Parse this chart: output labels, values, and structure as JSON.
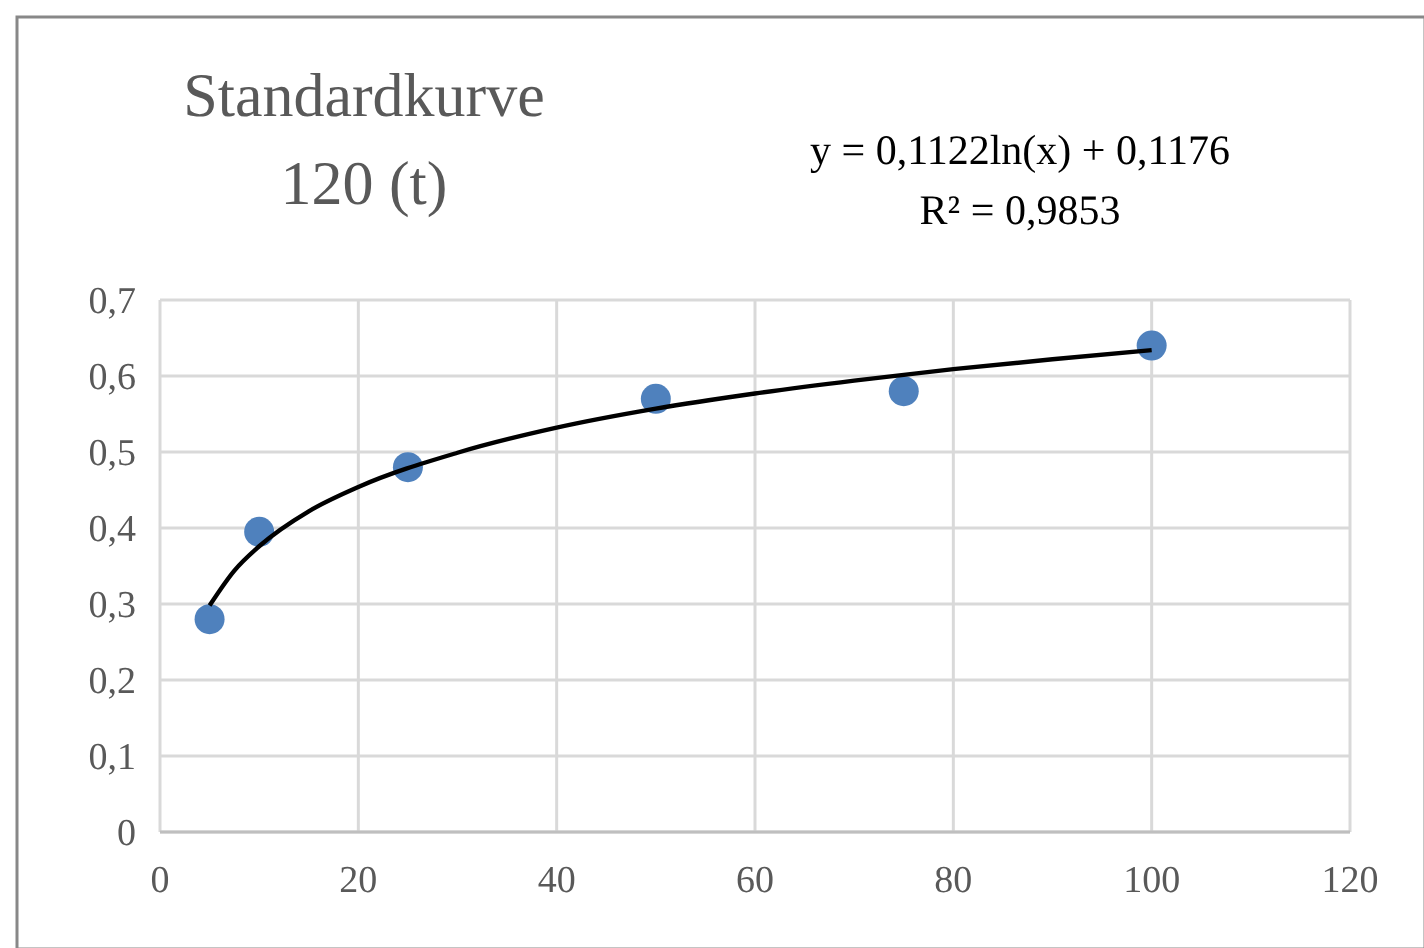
{
  "chart_data": {
    "type": "scatter",
    "title": "Standardkurve 120 (t)",
    "annotations": [
      "y = 0,1122ln(x) + 0,1176",
      "R² = 0,9853"
    ],
    "xlim": [
      0,
      120
    ],
    "xticks": [
      0,
      20,
      40,
      60,
      80,
      100,
      120
    ],
    "ylim": [
      0,
      0.7
    ],
    "yticks": [
      {
        "value": 0,
        "label": "0"
      },
      {
        "value": 0.1,
        "label": "0,1"
      },
      {
        "value": 0.2,
        "label": "0,2"
      },
      {
        "value": 0.3,
        "label": "0,3"
      },
      {
        "value": 0.4,
        "label": "0,4"
      },
      {
        "value": 0.5,
        "label": "0,5"
      },
      {
        "value": 0.6,
        "label": "0,6"
      },
      {
        "value": 0.7,
        "label": "0,7"
      }
    ],
    "grid": true,
    "marker": "circle",
    "series": [
      {
        "color": "#4f81bd",
        "x": [
          5,
          10,
          25,
          50,
          75,
          100
        ],
        "values": [
          0.28,
          0.395,
          0.48,
          0.57,
          0.58,
          0.64
        ]
      },
      {
        "type": "line",
        "color": "#000000",
        "marker": "none",
        "line_style": "solid",
        "x": [
          5,
          7.5,
          10,
          15,
          20,
          30,
          40,
          50,
          60,
          70,
          80,
          90,
          100
        ],
        "values": [
          0.298,
          0.344,
          0.376,
          0.422,
          0.454,
          0.499,
          0.532,
          0.557,
          0.577,
          0.594,
          0.609,
          0.622,
          0.634
        ]
      }
    ]
  }
}
